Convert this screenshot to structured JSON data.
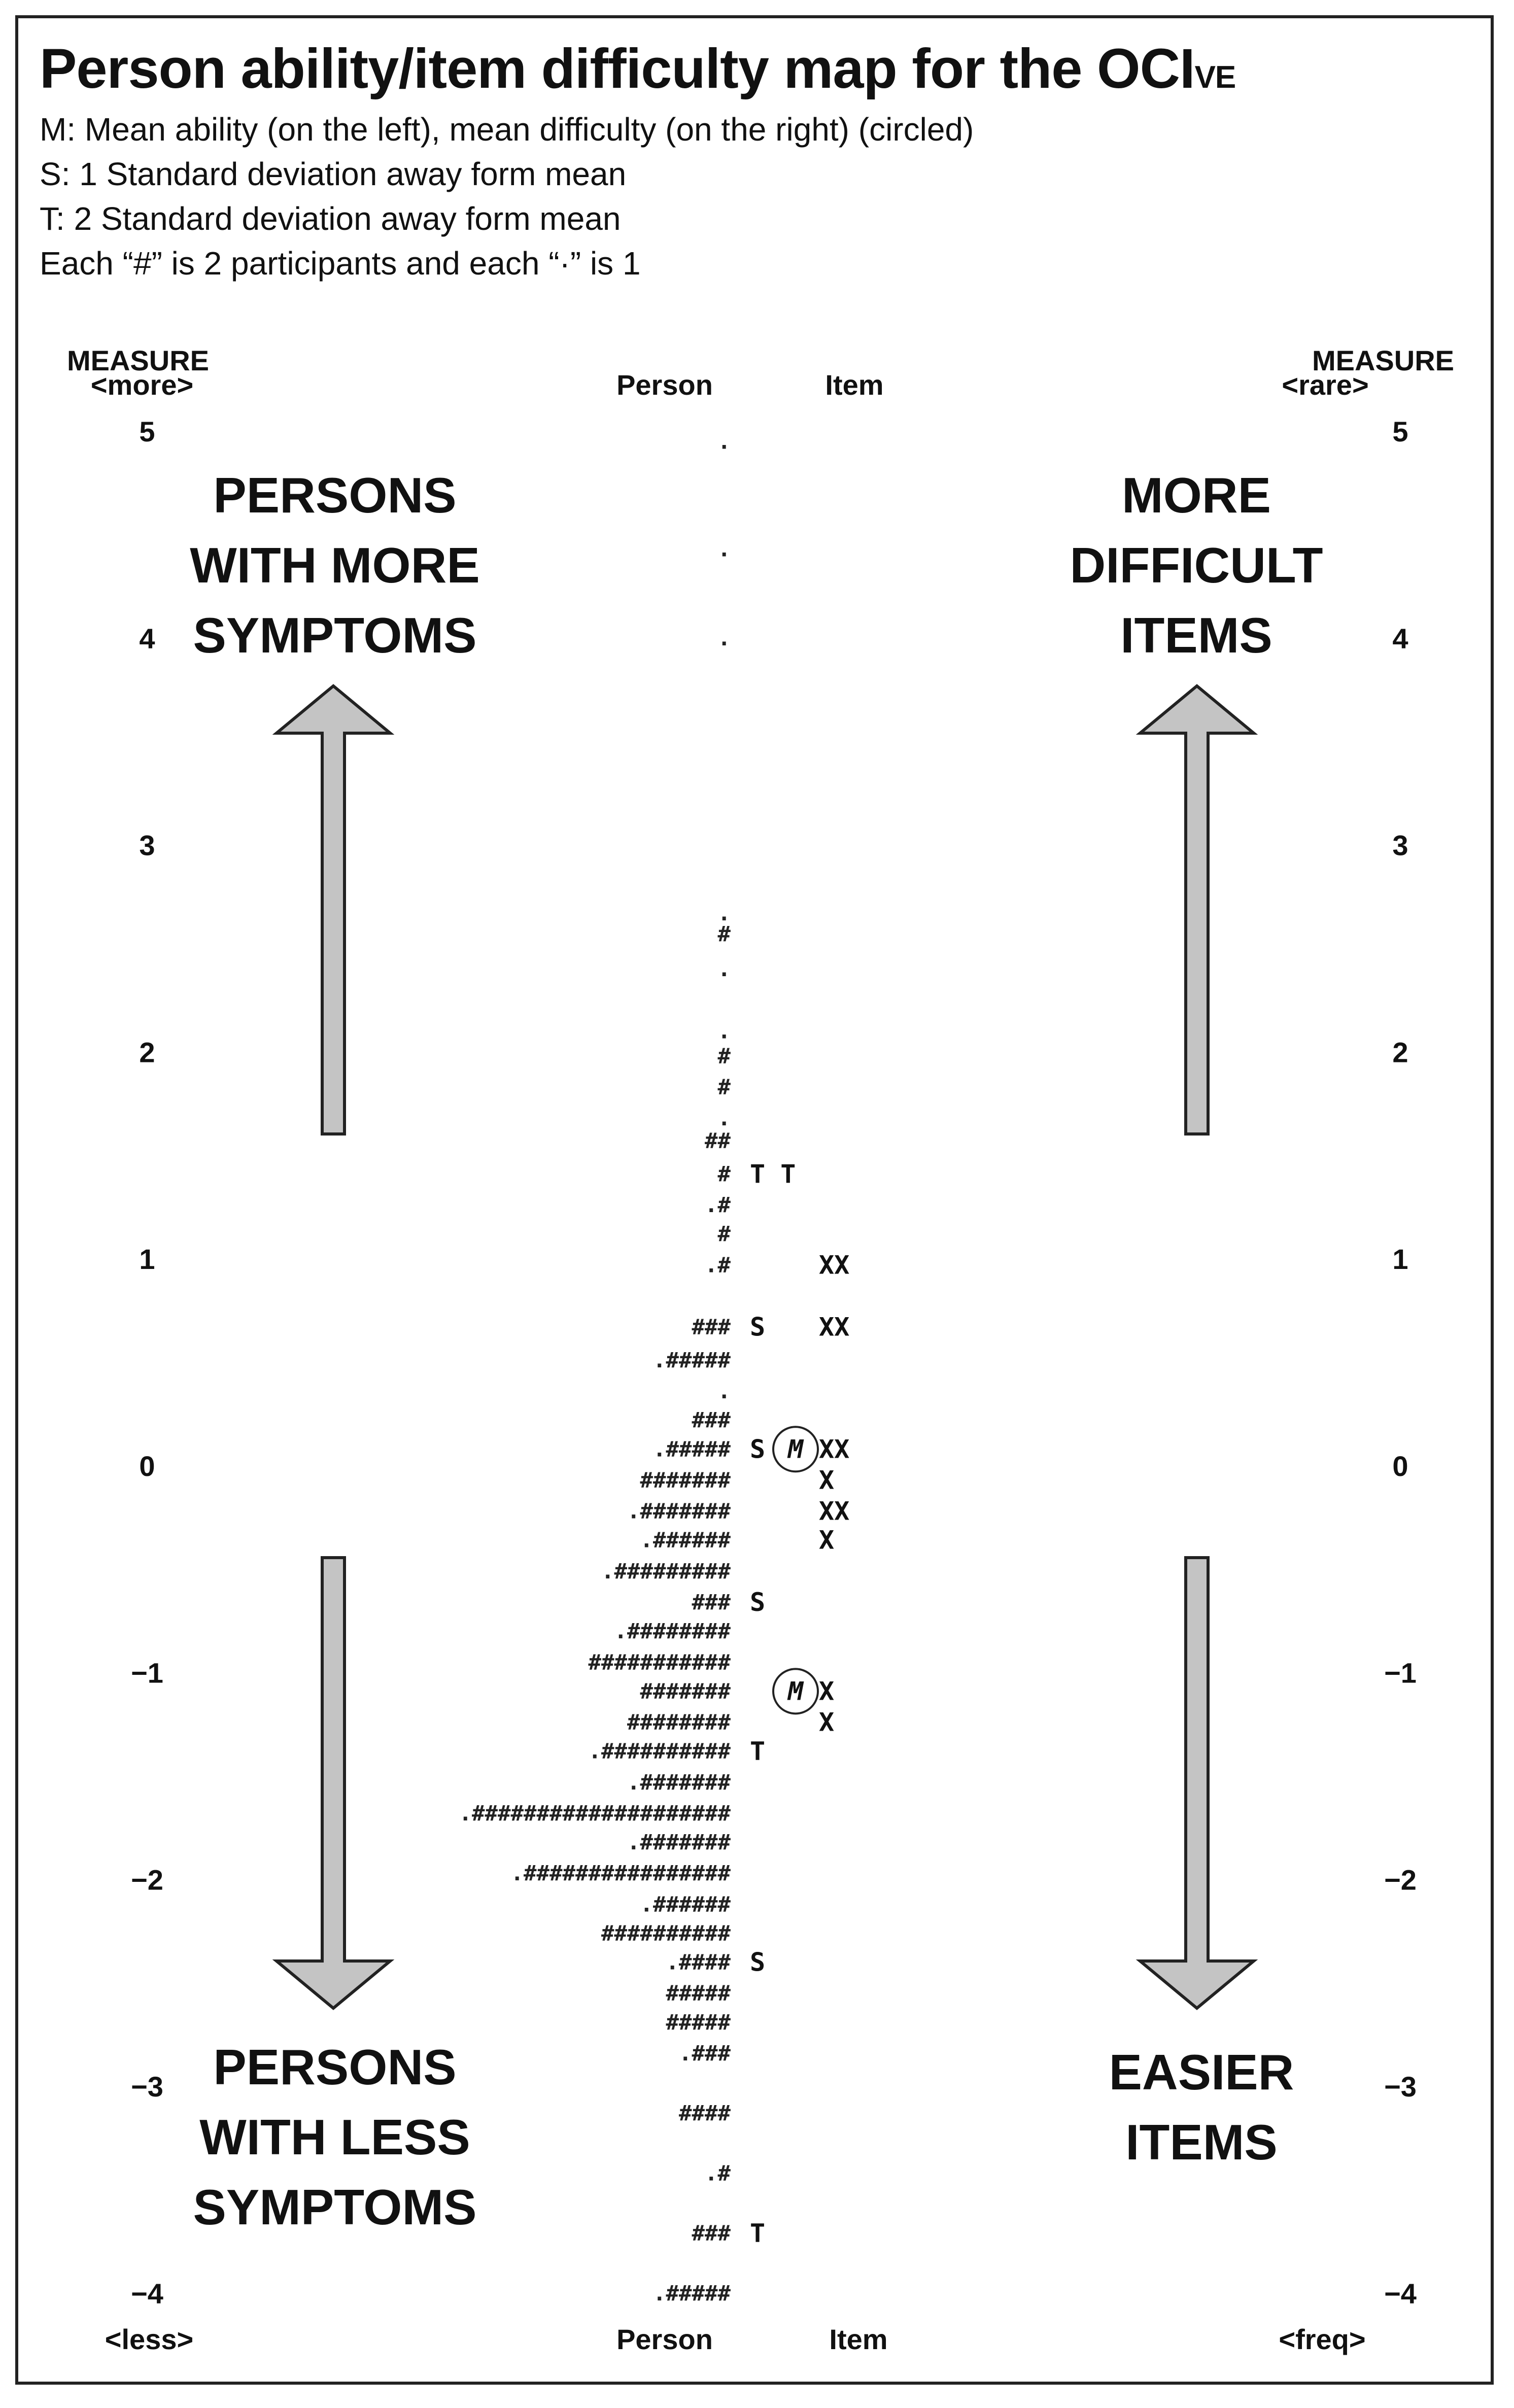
{
  "title": {
    "main": "Person ability/item difficulty map for the OCI",
    "subscript": "VE"
  },
  "legend_lines": [
    "M: Mean ability (on the left), mean difficulty (on the right) (circled)",
    "S: 1 Standard deviation away form mean",
    "T: 2 Standard deviation away form mean",
    "Each “#” is 2 participants and each “·” is 1"
  ],
  "headers": {
    "left_measure": "MEASURE",
    "left_more": "<more>",
    "right_measure": "MEASURE",
    "right_rare": "<rare>",
    "person_top": "Person",
    "item_top": "Item",
    "person_bottom": "Person",
    "item_bottom": "Item",
    "left_less": "<less>",
    "right_freq": "<freq>"
  },
  "annotations": {
    "top_left": [
      "PERSONS",
      "WITH MORE",
      "SYMPTOMS"
    ],
    "top_right": [
      "MORE",
      "DIFFICULT",
      "ITEMS"
    ],
    "bottom_left": [
      "PERSONS",
      "WITH LESS",
      "SYMPTOMS"
    ],
    "bottom_right": [
      "EASIER",
      "ITEMS"
    ]
  },
  "colors": {
    "arrow_fill": "#c4c4c4",
    "arrow_stroke": "#222222"
  },
  "chart_data": {
    "type": "table",
    "ylim": [
      -4,
      5
    ],
    "ticks": [
      {
        "value": 5,
        "label": "5"
      },
      {
        "value": 4,
        "label": "4"
      },
      {
        "value": 3,
        "label": "3"
      },
      {
        "value": 2,
        "label": "2"
      },
      {
        "value": 1,
        "label": "1"
      },
      {
        "value": 0,
        "label": "0"
      },
      {
        "value": -1,
        "label": "−1"
      },
      {
        "value": -2,
        "label": "−2"
      },
      {
        "value": -3,
        "label": "−3"
      },
      {
        "value": -4,
        "label": "−4"
      }
    ],
    "rows": [
      {
        "measure": 4.95,
        "person": "."
      },
      {
        "measure": 4.43,
        "person": "."
      },
      {
        "measure": 4.0,
        "person": "."
      },
      {
        "measure": 2.67,
        "person": "."
      },
      {
        "measure": 2.57,
        "person": "#"
      },
      {
        "measure": 2.4,
        "person": "."
      },
      {
        "measure": 2.1,
        "person": "."
      },
      {
        "measure": 1.98,
        "person": "#"
      },
      {
        "measure": 1.83,
        "person": "#"
      },
      {
        "measure": 1.68,
        "person": "."
      },
      {
        "measure": 1.57,
        "person": "##"
      },
      {
        "measure": 1.41,
        "person": "#",
        "markers": "T T"
      },
      {
        "measure": 1.26,
        "person": ".#"
      },
      {
        "measure": 1.12,
        "person": "#"
      },
      {
        "measure": 0.97,
        "person": ".#",
        "items": "XX"
      },
      {
        "measure": 0.67,
        "person": "###",
        "markers": "S",
        "items": "XX"
      },
      {
        "measure": 0.51,
        "person": ".#####"
      },
      {
        "measure": 0.36,
        "person": "."
      },
      {
        "measure": 0.22,
        "person": "###"
      },
      {
        "measure": 0.08,
        "person": ".#####",
        "markers": "S",
        "circled": "M",
        "items": "XX"
      },
      {
        "measure": -0.07,
        "person": "#######",
        "items": "X"
      },
      {
        "measure": -0.22,
        "person": ".#######",
        "items": "XX"
      },
      {
        "measure": -0.36,
        "person": ".######",
        "items": "X"
      },
      {
        "measure": -0.51,
        "person": ".#########"
      },
      {
        "measure": -0.66,
        "person": "###",
        "markers": "S"
      },
      {
        "measure": -0.8,
        "person": ".########"
      },
      {
        "measure": -0.95,
        "person": "###########"
      },
      {
        "measure": -1.09,
        "person": "#######",
        "circled": "M",
        "items": "X"
      },
      {
        "measure": -1.24,
        "person": "########",
        "items": "X"
      },
      {
        "measure": -1.38,
        "person": ".##########",
        "markers": "T"
      },
      {
        "measure": -1.53,
        "person": ".#######"
      },
      {
        "measure": -1.68,
        "person": ".####################"
      },
      {
        "measure": -1.82,
        "person": ".#######"
      },
      {
        "measure": -1.97,
        "person": ".################"
      },
      {
        "measure": -2.12,
        "person": ".######"
      },
      {
        "measure": -2.26,
        "person": "##########"
      },
      {
        "measure": -2.4,
        "person": ".####",
        "markers": "S"
      },
      {
        "measure": -2.55,
        "person": "#####"
      },
      {
        "measure": -2.69,
        "person": "#####"
      },
      {
        "measure": -2.84,
        "person": ".###"
      },
      {
        "measure": -3.13,
        "person": "####"
      },
      {
        "measure": -3.42,
        "person": ".#"
      },
      {
        "measure": -3.71,
        "person": "###",
        "markers": "T"
      },
      {
        "measure": -4.0,
        "person": ".#####"
      }
    ]
  }
}
